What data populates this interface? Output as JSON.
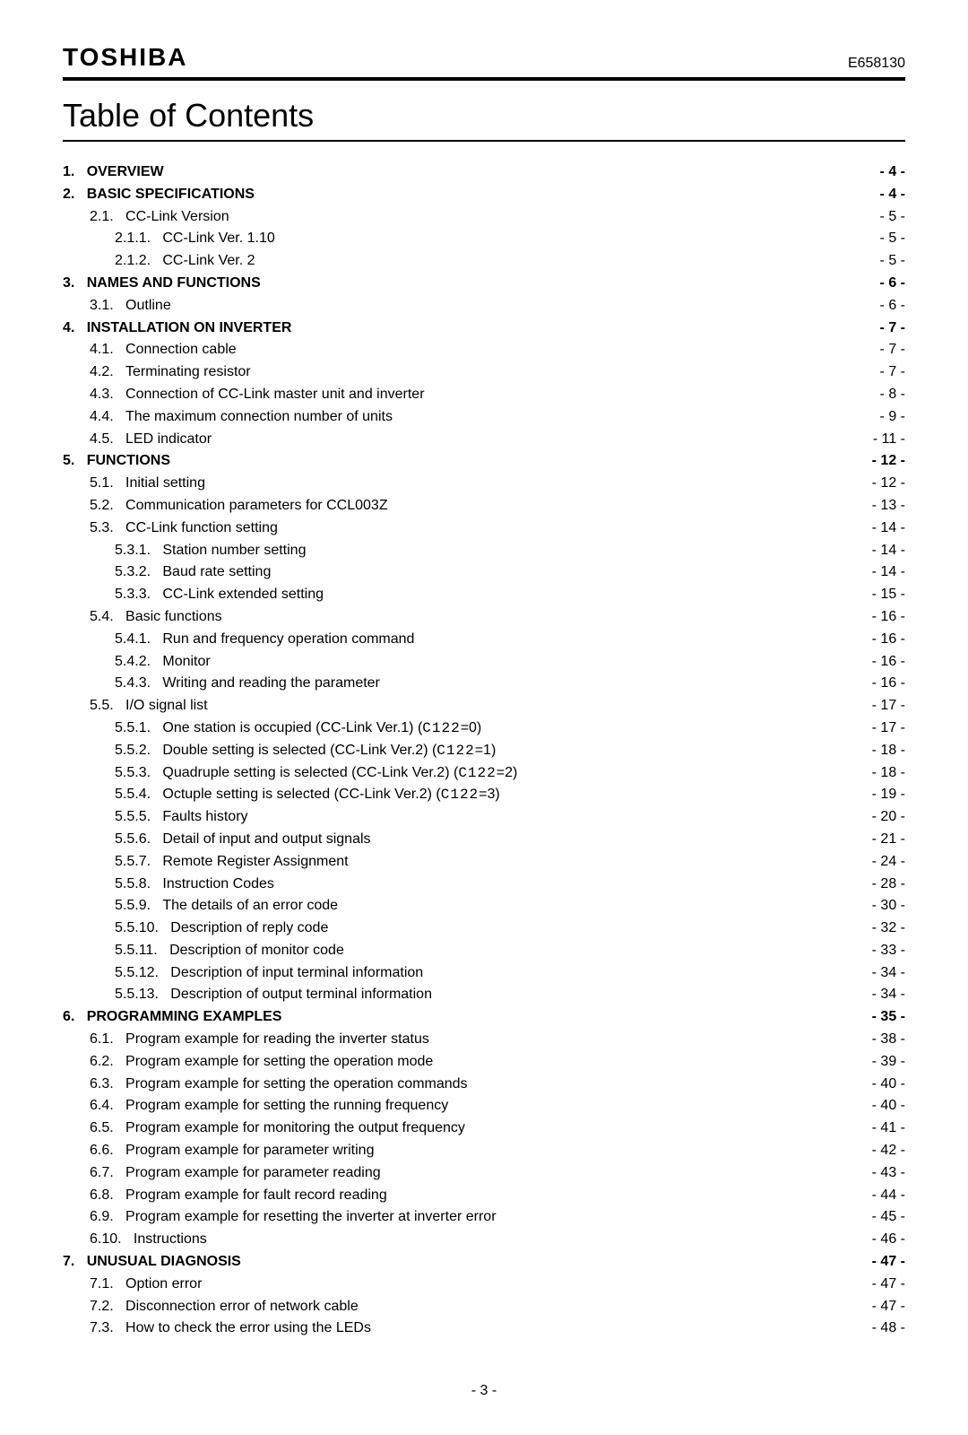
{
  "header": {
    "logo": "TOSHIBA",
    "doc_number": "E658130"
  },
  "title": "Table of Contents",
  "page_number": "- 3 -",
  "toc": [
    {
      "level": 1,
      "num": "1.",
      "title": "OVERVIEW",
      "page": "- 4 -",
      "bold": true
    },
    {
      "level": 1,
      "num": "2.",
      "title": "BASIC SPECIFICATIONS",
      "page": "- 4 -",
      "bold": true
    },
    {
      "level": 2,
      "num": "2.1.",
      "title": "CC-Link Version",
      "page": "- 5 -",
      "bold": false
    },
    {
      "level": 3,
      "num": "2.1.1.",
      "title": "CC-Link Ver. 1.10",
      "page": "- 5 -",
      "bold": false
    },
    {
      "level": 3,
      "num": "2.1.2.",
      "title": "CC-Link Ver. 2",
      "page": "- 5 -",
      "bold": false
    },
    {
      "level": 1,
      "num": "3.",
      "title": "NAMES AND FUNCTIONS",
      "page": "- 6 -",
      "bold": true
    },
    {
      "level": 2,
      "num": "3.1.",
      "title": "Outline",
      "page": "- 6 -",
      "bold": false
    },
    {
      "level": 1,
      "num": "4.",
      "title": "INSTALLATION ON INVERTER",
      "page": "- 7 -",
      "bold": true
    },
    {
      "level": 2,
      "num": "4.1.",
      "title": "Connection cable",
      "page": "- 7 -",
      "bold": false
    },
    {
      "level": 2,
      "num": "4.2.",
      "title": "Terminating resistor",
      "page": "- 7 -",
      "bold": false
    },
    {
      "level": 2,
      "num": "4.3.",
      "title": "Connection of CC-Link master unit and inverter",
      "page": "- 8 -",
      "bold": false
    },
    {
      "level": 2,
      "num": "4.4.",
      "title": "The maximum connection number of units",
      "page": "- 9 -",
      "bold": false
    },
    {
      "level": 2,
      "num": "4.5.",
      "title": "LED indicator",
      "page": "- 11 -",
      "bold": false
    },
    {
      "level": 1,
      "num": "5.",
      "title": "FUNCTIONS",
      "page": "- 12 -",
      "bold": true
    },
    {
      "level": 2,
      "num": "5.1.",
      "title": "Initial setting",
      "page": "- 12 -",
      "bold": false
    },
    {
      "level": 2,
      "num": "5.2.",
      "title": "Communication parameters for CCL003Z",
      "page": "- 13 -",
      "bold": false
    },
    {
      "level": 2,
      "num": "5.3.",
      "title": "CC-Link function setting",
      "page": "- 14 -",
      "bold": false
    },
    {
      "level": 3,
      "num": "5.3.1.",
      "title": "Station number setting",
      "page": "- 14 -",
      "bold": false
    },
    {
      "level": 3,
      "num": "5.3.2.",
      "title": "Baud rate setting",
      "page": "- 14 -",
      "bold": false
    },
    {
      "level": 3,
      "num": "5.3.3.",
      "title": "CC-Link extended setting",
      "page": "- 15 -",
      "bold": false
    },
    {
      "level": 2,
      "num": "5.4.",
      "title": "Basic functions",
      "page": "- 16 -",
      "bold": false
    },
    {
      "level": 3,
      "num": "5.4.1.",
      "title": "Run and frequency operation command",
      "page": "- 16 -",
      "bold": false
    },
    {
      "level": 3,
      "num": "5.4.2.",
      "title": "Monitor",
      "page": "- 16 -",
      "bold": false
    },
    {
      "level": 3,
      "num": "5.4.3.",
      "title": "Writing and reading the parameter",
      "page": "- 16 -",
      "bold": false
    },
    {
      "level": 2,
      "num": "5.5.",
      "title": "I/O signal list",
      "page": "- 17 -",
      "bold": false
    },
    {
      "level": 3,
      "num": "5.5.1.",
      "title_html": "One station is occupied (CC-Link Ver.1) (<span class='seg'>C122</span>=0)",
      "page": "- 17 -",
      "bold": false
    },
    {
      "level": 3,
      "num": "5.5.2.",
      "title_html": "Double setting is selected (CC-Link Ver.2) (<span class='seg'>C122</span>=1)",
      "page": "- 18 -",
      "bold": false
    },
    {
      "level": 3,
      "num": "5.5.3.",
      "title_html": "Quadruple setting is selected (CC-Link Ver.2) (<span class='seg'>C122</span>=2)",
      "page": "- 18 -",
      "bold": false
    },
    {
      "level": 3,
      "num": "5.5.4.",
      "title_html": "Octuple setting is selected (CC-Link Ver.2) (<span class='seg'>C122</span>=3)",
      "page": "- 19 -",
      "bold": false
    },
    {
      "level": 3,
      "num": "5.5.5.",
      "title": "Faults history",
      "page": "- 20 -",
      "bold": false
    },
    {
      "level": 3,
      "num": "5.5.6.",
      "title": "Detail of input and output signals",
      "page": "- 21 -",
      "bold": false
    },
    {
      "level": 3,
      "num": "5.5.7.",
      "title": "Remote Register Assignment",
      "page": "- 24 -",
      "bold": false
    },
    {
      "level": 3,
      "num": "5.5.8.",
      "title": "Instruction Codes",
      "page": "- 28 -",
      "bold": false
    },
    {
      "level": 3,
      "num": "5.5.9.",
      "title": "The details of an error code",
      "page": "- 30 -",
      "bold": false
    },
    {
      "level": 3,
      "num": "5.5.10.",
      "title": "Description of reply code",
      "page": "- 32 -",
      "bold": false
    },
    {
      "level": 3,
      "num": "5.5.11.",
      "title": "Description of monitor code",
      "page": "- 33 -",
      "bold": false
    },
    {
      "level": 3,
      "num": "5.5.12.",
      "title": "Description of input terminal information",
      "page": "- 34 -",
      "bold": false
    },
    {
      "level": 3,
      "num": "5.5.13.",
      "title": "Description of output terminal information",
      "page": "- 34 -",
      "bold": false
    },
    {
      "level": 1,
      "num": "6.",
      "title": "PROGRAMMING EXAMPLES",
      "page": "- 35 -",
      "bold": true
    },
    {
      "level": 2,
      "num": "6.1.",
      "title": "Program example for reading the inverter status",
      "page": "- 38 -",
      "bold": false
    },
    {
      "level": 2,
      "num": "6.2.",
      "title": "Program example for setting the operation mode",
      "page": "- 39 -",
      "bold": false
    },
    {
      "level": 2,
      "num": "6.3.",
      "title": "Program example for setting the operation commands",
      "page": "- 40 -",
      "bold": false
    },
    {
      "level": 2,
      "num": "6.4.",
      "title": "Program example for setting the running frequency",
      "page": "- 40 -",
      "bold": false
    },
    {
      "level": 2,
      "num": "6.5.",
      "title": "Program example for monitoring the output frequency",
      "page": "- 41 -",
      "bold": false
    },
    {
      "level": 2,
      "num": "6.6.",
      "title": "Program example for parameter writing",
      "page": "- 42 -",
      "bold": false
    },
    {
      "level": 2,
      "num": "6.7.",
      "title": "Program example for parameter reading",
      "page": "- 43 -",
      "bold": false
    },
    {
      "level": 2,
      "num": "6.8.",
      "title": "Program example for fault record reading",
      "page": "- 44 -",
      "bold": false
    },
    {
      "level": 2,
      "num": "6.9.",
      "title": "Program example for resetting the inverter at inverter error",
      "page": "- 45 -",
      "bold": false
    },
    {
      "level": 2,
      "num": "6.10.",
      "title": "Instructions",
      "page": "- 46 -",
      "bold": false
    },
    {
      "level": 1,
      "num": "7.",
      "title": "UNUSUAL DIAGNOSIS",
      "page": "- 47 -",
      "bold": true
    },
    {
      "level": 2,
      "num": "7.1.",
      "title": "Option error",
      "page": "- 47 -",
      "bold": false
    },
    {
      "level": 2,
      "num": "7.2.",
      "title": "Disconnection error of network cable",
      "page": "- 47 -",
      "bold": false
    },
    {
      "level": 2,
      "num": "7.3.",
      "title": "How to check the error using the LEDs",
      "page": "- 48 -",
      "bold": false
    }
  ]
}
